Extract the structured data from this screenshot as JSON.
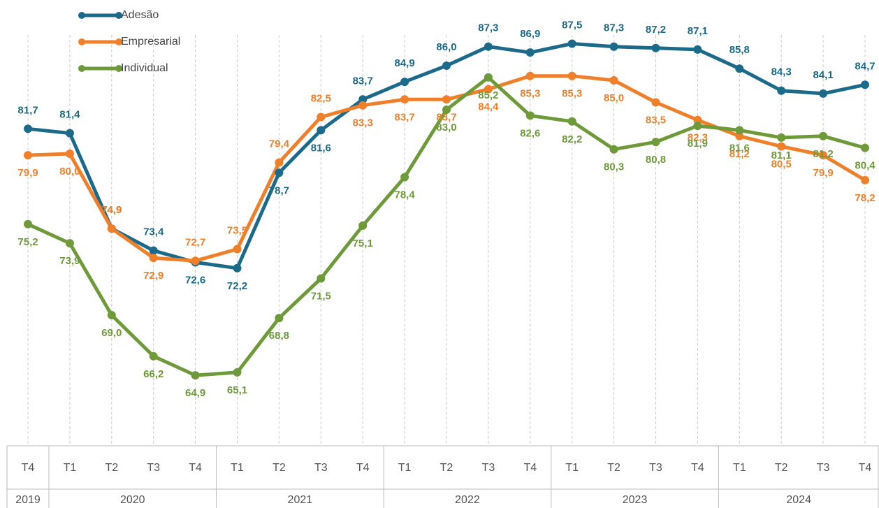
{
  "chart_data": {
    "type": "line",
    "categories": [
      {
        "quarter": "T4",
        "year": "2019"
      },
      {
        "quarter": "T1",
        "year": "2020"
      },
      {
        "quarter": "T2",
        "year": "2020"
      },
      {
        "quarter": "T3",
        "year": "2020"
      },
      {
        "quarter": "T4",
        "year": "2020"
      },
      {
        "quarter": "T1",
        "year": "2021"
      },
      {
        "quarter": "T2",
        "year": "2021"
      },
      {
        "quarter": "T3",
        "year": "2021"
      },
      {
        "quarter": "T4",
        "year": "2021"
      },
      {
        "quarter": "T1",
        "year": "2022"
      },
      {
        "quarter": "T2",
        "year": "2022"
      },
      {
        "quarter": "T3",
        "year": "2022"
      },
      {
        "quarter": "T4",
        "year": "2022"
      },
      {
        "quarter": "T1",
        "year": "2023"
      },
      {
        "quarter": "T2",
        "year": "2023"
      },
      {
        "quarter": "T3",
        "year": "2023"
      },
      {
        "quarter": "T4",
        "year": "2023"
      },
      {
        "quarter": "T1",
        "year": "2024"
      },
      {
        "quarter": "T2",
        "year": "2024"
      },
      {
        "quarter": "T3",
        "year": "2024"
      },
      {
        "quarter": "T4",
        "year": "2024"
      }
    ],
    "series": [
      {
        "name": "Adesão",
        "color": "#1b6a8a",
        "values": [
          81.7,
          81.4,
          74.9,
          73.4,
          72.6,
          72.2,
          78.7,
          81.6,
          83.7,
          84.9,
          86.0,
          87.3,
          86.9,
          87.5,
          87.3,
          87.2,
          87.1,
          85.8,
          84.3,
          84.1,
          84.7
        ],
        "value_labels": [
          "81,7",
          "81,4",
          "74,9",
          "73,4",
          "72,6",
          "72,2",
          "78,7",
          "81,6",
          "83,7",
          "84,9",
          "86,0",
          "87,3",
          "86,9",
          "87,5",
          "87,3",
          "87,2",
          "87,1",
          "85,8",
          "84,3",
          "84,1",
          "84,7"
        ]
      },
      {
        "name": "Empresarial",
        "color": "#f07f2a",
        "values": [
          79.9,
          80.0,
          74.9,
          72.9,
          72.7,
          73.5,
          79.4,
          82.5,
          83.3,
          83.7,
          83.7,
          84.4,
          85.3,
          85.3,
          85.0,
          83.5,
          82.3,
          81.2,
          80.5,
          79.9,
          78.2
        ],
        "value_labels": [
          "79,9",
          "80,0",
          "74,9",
          "72,9",
          "72,7",
          "73,5",
          "79,4",
          "82,5",
          "83,3",
          "83,7",
          "83,7",
          "84,4",
          "85,3",
          "85,3",
          "85,0",
          "83,5",
          "82,3",
          "81,2",
          "80,5",
          "79,9",
          "78,2"
        ]
      },
      {
        "name": "Individual",
        "color": "#6e9a3a",
        "values": [
          75.2,
          73.9,
          69.0,
          66.2,
          64.9,
          65.1,
          68.8,
          71.5,
          75.1,
          78.4,
          83.0,
          85.2,
          82.6,
          82.2,
          80.3,
          80.8,
          81.9,
          81.6,
          81.1,
          81.2,
          80.4
        ],
        "value_labels": [
          "75,2",
          "73,9",
          "69,0",
          "66,2",
          "64,9",
          "65,1",
          "68,8",
          "71,5",
          "75,1",
          "78,4",
          "83,0",
          "85,2",
          "82,6",
          "82,2",
          "80,3",
          "80,8",
          "81,9",
          "81,6",
          "81,1",
          "81,2",
          "80,4"
        ]
      }
    ],
    "ylim": [
      60,
      90
    ],
    "legend": "top-left"
  }
}
